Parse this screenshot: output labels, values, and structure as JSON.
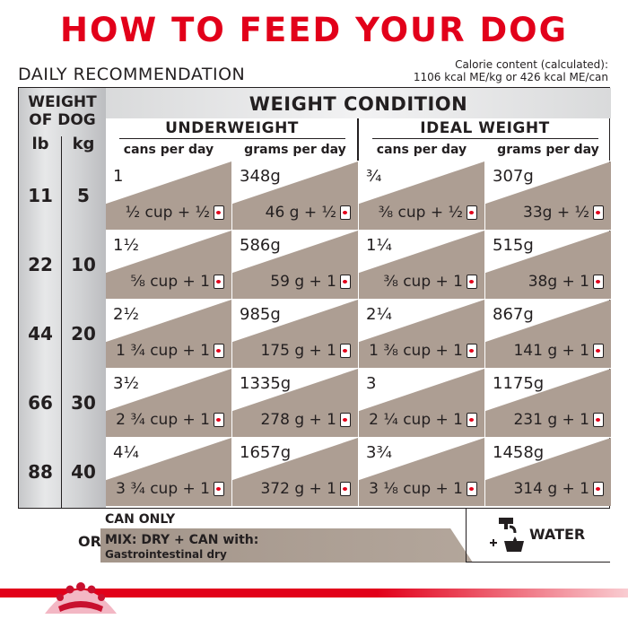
{
  "title": "HOW TO FEED YOUR DOG",
  "daily_recommendation": "DAILY RECOMMENDATION",
  "calorie": {
    "label": "Calorie content (calculated):",
    "value": "1106 kcal ME/kg or 426 kcal ME/can"
  },
  "table": {
    "weight_header_line1": "WEIGHT",
    "weight_header_line2": "OF DOG",
    "unit_lb": "lb",
    "unit_kg": "kg",
    "condition_header": "WEIGHT CONDITION",
    "group_underweight": "UNDERWEIGHT",
    "group_ideal": "IDEAL WEIGHT",
    "sub_cans": "cans per day",
    "sub_grams": "grams per day",
    "rows": [
      {
        "lb": "11",
        "kg": "5",
        "cells": [
          {
            "top": "1",
            "bottom": "½ cup + ½"
          },
          {
            "top": "348g",
            "bottom": "46 g + ½"
          },
          {
            "top": "¾",
            "bottom": "⅜ cup + ½"
          },
          {
            "top": "307g",
            "bottom": "33g + ½"
          }
        ]
      },
      {
        "lb": "22",
        "kg": "10",
        "cells": [
          {
            "top": "1½",
            "bottom": "⅝ cup + 1"
          },
          {
            "top": "586g",
            "bottom": "59 g + 1"
          },
          {
            "top": "1¼",
            "bottom": "⅜ cup + 1"
          },
          {
            "top": "515g",
            "bottom": "38g + 1"
          }
        ]
      },
      {
        "lb": "44",
        "kg": "20",
        "cells": [
          {
            "top": "2½",
            "bottom": "1 ¾ cup + 1"
          },
          {
            "top": "985g",
            "bottom": "175 g + 1"
          },
          {
            "top": "2¼",
            "bottom": "1 ⅜ cup + 1"
          },
          {
            "top": "867g",
            "bottom": "141 g + 1"
          }
        ]
      },
      {
        "lb": "66",
        "kg": "30",
        "cells": [
          {
            "top": "3½",
            "bottom": "2 ¾ cup + 1"
          },
          {
            "top": "1335g",
            "bottom": "278 g + 1"
          },
          {
            "top": "3",
            "bottom": "2 ¼ cup + 1"
          },
          {
            "top": "1175g",
            "bottom": "231 g + 1"
          }
        ]
      },
      {
        "lb": "88",
        "kg": "40",
        "cells": [
          {
            "top": "4¼",
            "bottom": "3 ¾ cup + 1"
          },
          {
            "top": "1657g",
            "bottom": "372 g + 1"
          },
          {
            "top": "3¾",
            "bottom": "3 ⅛ cup + 1"
          },
          {
            "top": "1458g",
            "bottom": "314 g + 1"
          }
        ]
      }
    ]
  },
  "bottom": {
    "can_only": "CAN ONLY",
    "or": "OR",
    "mix_label": "MIX: DRY + CAN with:",
    "mix_sub": "Gastrointestinal dry",
    "water": "WATER"
  },
  "icons": {
    "can": "dog-food-can-icon",
    "water": "water-tap-bowl-icon",
    "logo": "royal-canin-crown-logo"
  },
  "colors": {
    "title_red": "#e2001a",
    "cell_taupe": "#ad9e93",
    "text_dark": "#231f20"
  }
}
